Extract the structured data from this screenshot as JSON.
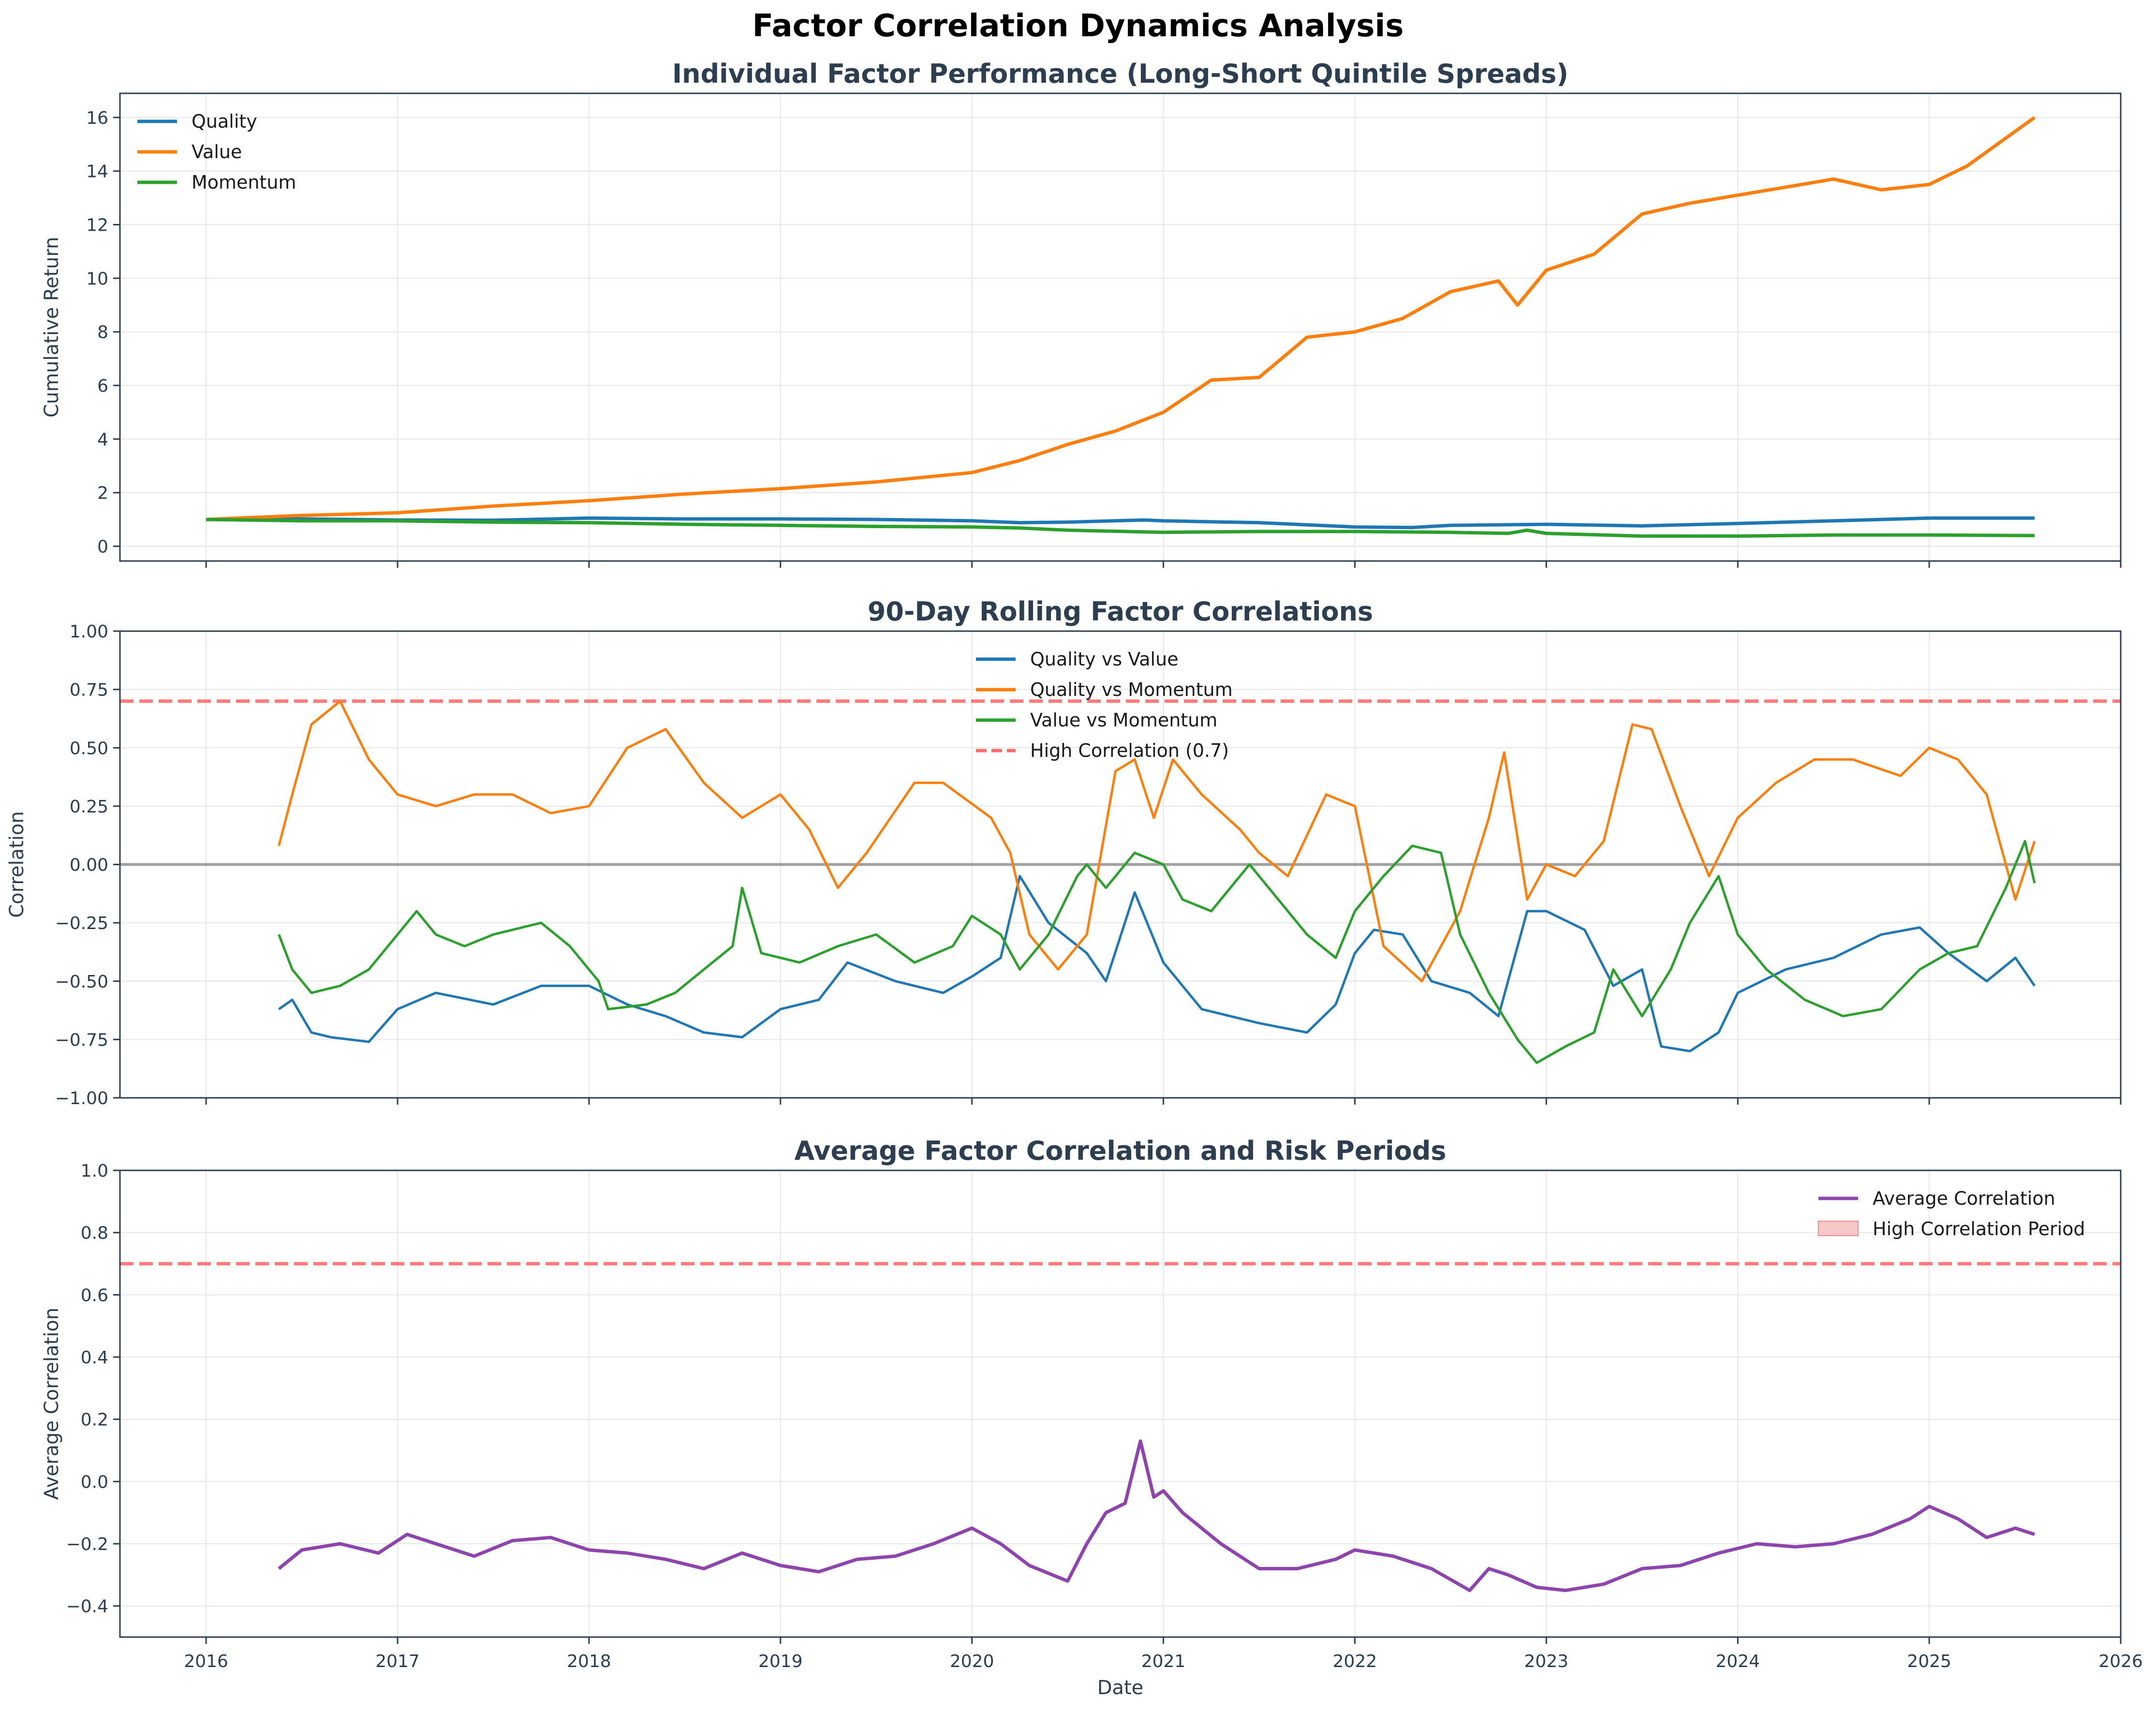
{
  "figure_title": "Factor Correlation Dynamics Analysis",
  "colors": {
    "quality": "#1f77b4",
    "value": "#ff7f0e",
    "momentum": "#2ca02c",
    "average": "#8e44ad",
    "threshold": "#ff6b6b",
    "zero_line": "#808080",
    "axis": "#2c3e50",
    "title": "#2c3e50",
    "grid": "#e6e6e6"
  },
  "chart_data": [
    {
      "type": "line",
      "title": "Individual Factor Performance (Long-Short Quintile Spreads)",
      "xlabel": "",
      "ylabel": "Cumulative Return",
      "xlim": [
        2015.55,
        2026.0
      ],
      "ylim": [
        -0.55,
        16.9
      ],
      "yticks": [
        0,
        2,
        4,
        6,
        8,
        10,
        12,
        14,
        16
      ],
      "ytick_labels": [
        "0",
        "2",
        "4",
        "6",
        "8",
        "10",
        "12",
        "14",
        "16"
      ],
      "grid": true,
      "legend_position": "upper-left",
      "series": [
        {
          "name": "Quality",
          "color_key": "quality",
          "x": [
            2016.0,
            2016.5,
            2017.0,
            2017.5,
            2018.0,
            2018.5,
            2019.0,
            2019.5,
            2020.0,
            2020.25,
            2020.5,
            2020.9,
            2021.0,
            2021.5,
            2022.0,
            2022.3,
            2022.5,
            2023.0,
            2023.5,
            2024.0,
            2024.5,
            2025.0,
            2025.55
          ],
          "y": [
            1.0,
            1.02,
            0.98,
            0.97,
            1.05,
            1.02,
            1.02,
            1.0,
            0.95,
            0.88,
            0.9,
            0.98,
            0.95,
            0.88,
            0.72,
            0.7,
            0.78,
            0.82,
            0.76,
            0.85,
            0.95,
            1.05,
            1.05
          ]
        },
        {
          "name": "Value",
          "color_key": "value",
          "x": [
            2016.0,
            2016.5,
            2017.0,
            2017.5,
            2018.0,
            2018.5,
            2019.0,
            2019.5,
            2020.0,
            2020.25,
            2020.5,
            2020.75,
            2021.0,
            2021.25,
            2021.5,
            2021.75,
            2022.0,
            2022.25,
            2022.5,
            2022.75,
            2022.85,
            2023.0,
            2023.25,
            2023.5,
            2023.75,
            2024.0,
            2024.25,
            2024.5,
            2024.75,
            2025.0,
            2025.2,
            2025.55
          ],
          "y": [
            1.0,
            1.15,
            1.25,
            1.5,
            1.7,
            1.95,
            2.15,
            2.4,
            2.75,
            3.2,
            3.8,
            4.3,
            5.0,
            6.2,
            6.3,
            7.8,
            8.0,
            8.5,
            9.5,
            9.9,
            9.0,
            10.3,
            10.9,
            12.4,
            12.8,
            13.1,
            13.4,
            13.7,
            13.3,
            13.5,
            14.2,
            16.0
          ]
        },
        {
          "name": "Momentum",
          "color_key": "momentum",
          "x": [
            2016.0,
            2016.5,
            2017.0,
            2017.5,
            2018.0,
            2018.5,
            2019.0,
            2019.5,
            2020.0,
            2020.25,
            2020.5,
            2021.0,
            2021.5,
            2022.0,
            2022.5,
            2022.8,
            2022.9,
            2023.0,
            2023.5,
            2024.0,
            2024.5,
            2025.0,
            2025.55
          ],
          "y": [
            1.0,
            0.95,
            0.95,
            0.9,
            0.88,
            0.82,
            0.78,
            0.74,
            0.72,
            0.68,
            0.6,
            0.52,
            0.55,
            0.55,
            0.52,
            0.48,
            0.6,
            0.48,
            0.38,
            0.38,
            0.42,
            0.42,
            0.4
          ]
        }
      ]
    },
    {
      "type": "line",
      "title": "90-Day Rolling Factor Correlations",
      "xlabel": "",
      "ylabel": "Correlation",
      "xlim": [
        2015.55,
        2026.0
      ],
      "ylim": [
        -1.0,
        1.0
      ],
      "yticks": [
        -1.0,
        -0.75,
        -0.5,
        -0.25,
        0.0,
        0.25,
        0.5,
        0.75,
        1.0
      ],
      "ytick_labels": [
        "−1.00",
        "−0.75",
        "−0.50",
        "−0.25",
        "0.00",
        "0.25",
        "0.50",
        "0.75",
        "1.00"
      ],
      "grid": true,
      "legend_position": "upper-center",
      "reference_lines": [
        {
          "name": "High Correlation (0.7)",
          "y": 0.7,
          "style": "dashed",
          "color_key": "threshold"
        },
        {
          "y": 0.0,
          "style": "solid",
          "color_key": "zero_line"
        }
      ],
      "series": [
        {
          "name": "Quality vs Value",
          "color_key": "quality",
          "x": [
            2016.38,
            2016.45,
            2016.55,
            2016.65,
            2016.85,
            2017.0,
            2017.2,
            2017.5,
            2017.75,
            2018.0,
            2018.2,
            2018.4,
            2018.6,
            2018.8,
            2019.0,
            2019.2,
            2019.35,
            2019.6,
            2019.85,
            2020.0,
            2020.15,
            2020.25,
            2020.4,
            2020.6,
            2020.7,
            2020.85,
            2021.0,
            2021.2,
            2021.5,
            2021.75,
            2021.9,
            2022.0,
            2022.1,
            2022.25,
            2022.4,
            2022.6,
            2022.75,
            2022.9,
            2023.0,
            2023.2,
            2023.35,
            2023.5,
            2023.6,
            2023.75,
            2023.9,
            2024.0,
            2024.25,
            2024.5,
            2024.75,
            2024.95,
            2025.1,
            2025.3,
            2025.45,
            2025.55
          ],
          "y": [
            -0.62,
            -0.58,
            -0.72,
            -0.74,
            -0.76,
            -0.62,
            -0.55,
            -0.6,
            -0.52,
            -0.52,
            -0.6,
            -0.65,
            -0.72,
            -0.74,
            -0.62,
            -0.58,
            -0.42,
            -0.5,
            -0.55,
            -0.48,
            -0.4,
            -0.05,
            -0.25,
            -0.38,
            -0.5,
            -0.12,
            -0.42,
            -0.62,
            -0.68,
            -0.72,
            -0.6,
            -0.38,
            -0.28,
            -0.3,
            -0.5,
            -0.55,
            -0.65,
            -0.2,
            -0.2,
            -0.28,
            -0.52,
            -0.45,
            -0.78,
            -0.8,
            -0.72,
            -0.55,
            -0.45,
            -0.4,
            -0.3,
            -0.27,
            -0.38,
            -0.5,
            -0.4,
            -0.52
          ]
        },
        {
          "name": "Quality vs Momentum",
          "color_key": "value",
          "x": [
            2016.38,
            2016.45,
            2016.55,
            2016.7,
            2016.85,
            2017.0,
            2017.2,
            2017.4,
            2017.6,
            2017.8,
            2018.0,
            2018.2,
            2018.4,
            2018.6,
            2018.8,
            2019.0,
            2019.15,
            2019.3,
            2019.45,
            2019.7,
            2019.85,
            2020.1,
            2020.2,
            2020.3,
            2020.45,
            2020.6,
            2020.75,
            2020.85,
            2020.95,
            2021.05,
            2021.2,
            2021.4,
            2021.5,
            2021.65,
            2021.85,
            2022.0,
            2022.15,
            2022.35,
            2022.55,
            2022.7,
            2022.78,
            2022.9,
            2023.0,
            2023.15,
            2023.3,
            2023.45,
            2023.55,
            2023.7,
            2023.85,
            2024.0,
            2024.2,
            2024.4,
            2024.6,
            2024.85,
            2025.0,
            2025.15,
            2025.3,
            2025.45,
            2025.55
          ],
          "y": [
            0.08,
            0.3,
            0.6,
            0.7,
            0.45,
            0.3,
            0.25,
            0.3,
            0.3,
            0.22,
            0.25,
            0.5,
            0.58,
            0.35,
            0.2,
            0.3,
            0.15,
            -0.1,
            0.05,
            0.35,
            0.35,
            0.2,
            0.05,
            -0.3,
            -0.45,
            -0.3,
            0.4,
            0.45,
            0.2,
            0.45,
            0.3,
            0.15,
            0.05,
            -0.05,
            0.3,
            0.25,
            -0.35,
            -0.5,
            -0.2,
            0.2,
            0.48,
            -0.15,
            0.0,
            -0.05,
            0.1,
            0.6,
            0.58,
            0.25,
            -0.05,
            0.2,
            0.35,
            0.45,
            0.45,
            0.38,
            0.5,
            0.45,
            0.3,
            -0.15,
            0.1
          ]
        },
        {
          "name": "Value vs Momentum",
          "color_key": "momentum",
          "x": [
            2016.38,
            2016.45,
            2016.55,
            2016.7,
            2016.85,
            2017.0,
            2017.1,
            2017.2,
            2017.35,
            2017.5,
            2017.6,
            2017.75,
            2017.9,
            2018.05,
            2018.1,
            2018.3,
            2018.45,
            2018.6,
            2018.75,
            2018.8,
            2018.9,
            2019.1,
            2019.3,
            2019.5,
            2019.7,
            2019.9,
            2020.0,
            2020.15,
            2020.25,
            2020.4,
            2020.55,
            2020.6,
            2020.7,
            2020.85,
            2021.0,
            2021.1,
            2021.25,
            2021.45,
            2021.6,
            2021.75,
            2021.9,
            2022.0,
            2022.15,
            2022.3,
            2022.45,
            2022.55,
            2022.7,
            2022.85,
            2022.95,
            2023.1,
            2023.25,
            2023.35,
            2023.5,
            2023.65,
            2023.75,
            2023.9,
            2024.0,
            2024.15,
            2024.35,
            2024.55,
            2024.75,
            2024.95,
            2025.1,
            2025.25,
            2025.4,
            2025.5,
            2025.55
          ],
          "y": [
            -0.3,
            -0.45,
            -0.55,
            -0.52,
            -0.45,
            -0.3,
            -0.2,
            -0.3,
            -0.35,
            -0.3,
            -0.28,
            -0.25,
            -0.35,
            -0.5,
            -0.62,
            -0.6,
            -0.55,
            -0.45,
            -0.35,
            -0.1,
            -0.38,
            -0.42,
            -0.35,
            -0.3,
            -0.42,
            -0.35,
            -0.22,
            -0.3,
            -0.45,
            -0.3,
            -0.05,
            0.0,
            -0.1,
            0.05,
            0.0,
            -0.15,
            -0.2,
            0.0,
            -0.15,
            -0.3,
            -0.4,
            -0.2,
            -0.05,
            0.08,
            0.05,
            -0.3,
            -0.55,
            -0.75,
            -0.85,
            -0.78,
            -0.72,
            -0.45,
            -0.65,
            -0.45,
            -0.25,
            -0.05,
            -0.3,
            -0.45,
            -0.58,
            -0.65,
            -0.62,
            -0.45,
            -0.38,
            -0.35,
            -0.1,
            0.1,
            -0.08
          ]
        }
      ]
    },
    {
      "type": "line",
      "title": "Average Factor Correlation and Risk Periods",
      "xlabel": "Date",
      "ylabel": "Average Correlation",
      "xlim": [
        2015.55,
        2026.0
      ],
      "ylim": [
        -0.5,
        1.0
      ],
      "yticks": [
        -0.4,
        -0.2,
        0.0,
        0.2,
        0.4,
        0.6,
        0.8,
        1.0
      ],
      "ytick_labels": [
        "−0.4",
        "−0.2",
        "0.0",
        "0.2",
        "0.4",
        "0.6",
        "0.8",
        "1.0"
      ],
      "xticks": [
        2016,
        2017,
        2018,
        2019,
        2020,
        2021,
        2022,
        2023,
        2024,
        2025,
        2026
      ],
      "xtick_labels": [
        "2016",
        "2017",
        "2018",
        "2019",
        "2020",
        "2021",
        "2022",
        "2023",
        "2024",
        "2025",
        "2026"
      ],
      "grid": true,
      "legend_position": "upper-right",
      "reference_lines": [
        {
          "y": 0.7,
          "style": "dashed",
          "color_key": "threshold"
        }
      ],
      "legend_extra": {
        "name": "High Correlation Period",
        "swatch": "#f7c6c6"
      },
      "series": [
        {
          "name": "Average Correlation",
          "color_key": "average",
          "x": [
            2016.38,
            2016.5,
            2016.7,
            2016.9,
            2017.05,
            2017.2,
            2017.4,
            2017.6,
            2017.8,
            2018.0,
            2018.2,
            2018.4,
            2018.6,
            2018.8,
            2019.0,
            2019.2,
            2019.4,
            2019.6,
            2019.8,
            2020.0,
            2020.15,
            2020.3,
            2020.5,
            2020.6,
            2020.7,
            2020.8,
            2020.88,
            2020.95,
            2021.0,
            2021.1,
            2021.3,
            2021.5,
            2021.7,
            2021.9,
            2022.0,
            2022.2,
            2022.4,
            2022.6,
            2022.7,
            2022.8,
            2022.95,
            2023.1,
            2023.3,
            2023.5,
            2023.7,
            2023.9,
            2024.1,
            2024.3,
            2024.5,
            2024.7,
            2024.9,
            2025.0,
            2025.15,
            2025.3,
            2025.45,
            2025.55
          ],
          "y": [
            -0.28,
            -0.22,
            -0.2,
            -0.23,
            -0.17,
            -0.2,
            -0.24,
            -0.19,
            -0.18,
            -0.22,
            -0.23,
            -0.25,
            -0.28,
            -0.23,
            -0.27,
            -0.29,
            -0.25,
            -0.24,
            -0.2,
            -0.15,
            -0.2,
            -0.27,
            -0.32,
            -0.2,
            -0.1,
            -0.07,
            0.13,
            -0.05,
            -0.03,
            -0.1,
            -0.2,
            -0.28,
            -0.28,
            -0.25,
            -0.22,
            -0.24,
            -0.28,
            -0.35,
            -0.28,
            -0.3,
            -0.34,
            -0.35,
            -0.33,
            -0.28,
            -0.27,
            -0.23,
            -0.2,
            -0.21,
            -0.2,
            -0.17,
            -0.12,
            -0.08,
            -0.12,
            -0.18,
            -0.15,
            -0.17
          ]
        }
      ]
    }
  ]
}
